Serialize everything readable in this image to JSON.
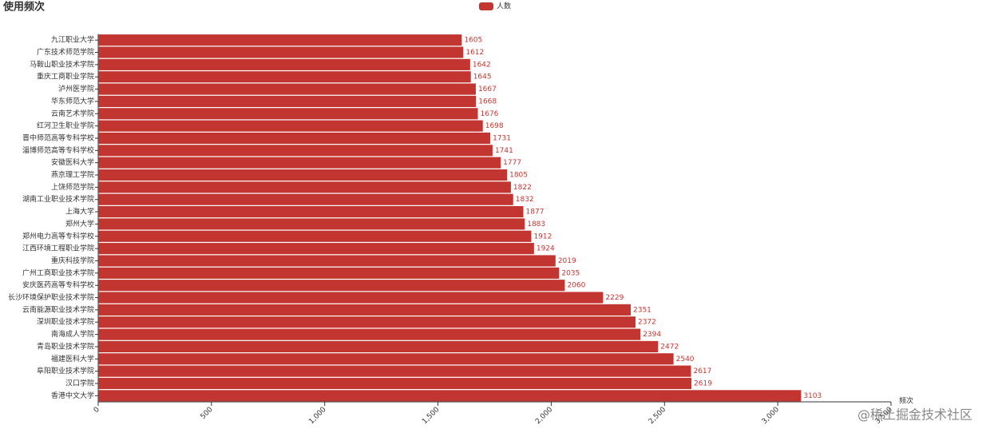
{
  "chart_data": {
    "type": "bar",
    "orientation": "horizontal",
    "title": "使用频次",
    "categories": [
      "九江职业大学",
      "广东技术师范学院",
      "马鞍山职业技术学院",
      "重庆工商职业学院",
      "泸州医学院",
      "华东师范大学",
      "云南艺术学院",
      "红河卫生职业学院",
      "晋中师范高等专科学校",
      "淄博师范高等专科学校",
      "安徽医科大学",
      "燕京理工学院",
      "上饶师范学院",
      "湖南工业职业技术学院",
      "上海大学",
      "郑州大学",
      "郑州电力高等专科学校",
      "江西环境工程职业学院",
      "重庆科技学院",
      "广州工商职业技术学院",
      "安庆医药高等专科学校",
      "长沙环境保护职业技术学院",
      "云南能源职业技术学院",
      "深圳职业技术学院",
      "南海成人学院",
      "青岛职业技术学院",
      "福建医科大学",
      "阜阳职业技术学院",
      "汉口学院",
      "香港中文大学"
    ],
    "series": [
      {
        "name": "人数",
        "color": "#c23531",
        "values": [
          1605,
          1612,
          1642,
          1645,
          1667,
          1668,
          1676,
          1698,
          1731,
          1741,
          1777,
          1805,
          1822,
          1832,
          1877,
          1883,
          1912,
          1924,
          2019,
          2035,
          2060,
          2229,
          2351,
          2372,
          2394,
          2472,
          2540,
          2617,
          2619,
          3103
        ]
      }
    ],
    "xlabel": "频次",
    "xlim": [
      0,
      3500
    ],
    "xticks": [
      0,
      500,
      {
        "value": 1000,
        "label": "1,000"
      },
      {
        "value": 1500,
        "label": "1,500"
      },
      {
        "value": 2000,
        "label": "2,000"
      },
      {
        "value": 2500,
        "label": "2,500"
      },
      {
        "value": 3000,
        "label": "3,000"
      },
      {
        "value": 3500,
        "label": "3,500"
      }
    ],
    "watermark": "@稀土掘金技术社区"
  }
}
